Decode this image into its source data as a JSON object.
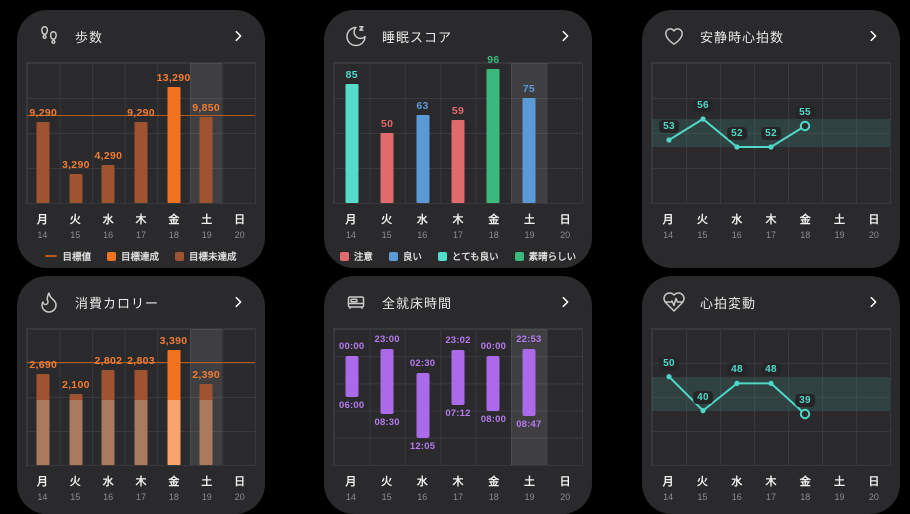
{
  "colors": {
    "page_bg": "#000000",
    "card_bg": "#2a2a2c",
    "grid_line": "#39393c",
    "highlight_col": "rgba(255,255,255,0.10)",
    "title_text": "#e8e8e8",
    "day_text": "#f0f0f0",
    "date_text": "#8d8d90",
    "icon_stroke": "#c9c9c9",
    "chevron": "#ffffff",
    "legend_text": "#dcdcdc",
    "orange": "#f1731f",
    "orange_light": "#f9a46c",
    "brown": "#9e5430",
    "brown_light": "#aa7a5e",
    "goal_line": "#b45b1e",
    "bar_label": "#f07c33",
    "red": "#e16a6c",
    "blue": "#5b9ad7",
    "teal": "#52dcc9",
    "green": "#3ab97e",
    "line_teal": "#4fd8c7",
    "band_fill": "rgba(79,216,199,0.14)",
    "badge_bg": "#252528",
    "purple": "#ab6ae9",
    "purple_label": "#b57bee"
  },
  "axis": {
    "days": [
      "月",
      "火",
      "水",
      "木",
      "金",
      "土",
      "日"
    ],
    "dates": [
      "14",
      "15",
      "16",
      "17",
      "18",
      "19",
      "20"
    ]
  },
  "cards": [
    {
      "id": "steps",
      "title": "歩数",
      "icon": "footprints-icon",
      "chart_data": {
        "type": "bar",
        "categories": [
          "月14",
          "火15",
          "水16",
          "木17",
          "金18",
          "土19",
          "日20"
        ],
        "values": [
          9290,
          3290,
          4290,
          9290,
          13290,
          9850,
          null
        ],
        "value_labels": [
          "9,290",
          "3,290",
          "4,290",
          "9,290",
          "13,290",
          "9,850",
          ""
        ],
        "bar_colors": [
          "brown",
          "brown",
          "brown",
          "brown",
          "orange",
          "brown",
          null
        ],
        "label_color": "bar_label",
        "goal": 10000,
        "ylim": [
          0,
          16000
        ],
        "highlight_index": 5,
        "legend": [
          {
            "swatch": "line",
            "label": "目標値",
            "color_key": "goal_line"
          },
          {
            "swatch": "square",
            "label": "目標達成",
            "color_key": "orange"
          },
          {
            "swatch": "square",
            "label": "目標未達成",
            "color_key": "brown"
          }
        ]
      }
    },
    {
      "id": "sleep-score",
      "title": "睡眠スコア",
      "icon": "moon-z-icon",
      "chart_data": {
        "type": "bar",
        "categories": [
          "月14",
          "火15",
          "水16",
          "木17",
          "金18",
          "土19",
          "日20"
        ],
        "values": [
          85,
          50,
          63,
          59,
          96,
          75,
          null
        ],
        "value_labels": [
          "85",
          "50",
          "63",
          "59",
          "96",
          "75",
          ""
        ],
        "bar_colors": [
          "teal",
          "red",
          "blue",
          "red",
          "green",
          "blue",
          null
        ],
        "label_color": "per-bar",
        "ylim": [
          0,
          100
        ],
        "highlight_index": 5,
        "legend": [
          {
            "swatch": "square",
            "label": "注意",
            "color_key": "red"
          },
          {
            "swatch": "square",
            "label": "良い",
            "color_key": "blue"
          },
          {
            "swatch": "square",
            "label": "とても良い",
            "color_key": "teal"
          },
          {
            "swatch": "square",
            "label": "素晴らしい",
            "color_key": "green"
          }
        ]
      }
    },
    {
      "id": "resting-hr",
      "title": "安静時心拍数",
      "icon": "heart-icon",
      "chart_data": {
        "type": "line",
        "categories": [
          "月14",
          "火15",
          "水16",
          "木17",
          "金18",
          "土19",
          "日20"
        ],
        "values": [
          53,
          56,
          52,
          52,
          55,
          null,
          null
        ],
        "ylim": [
          44,
          64
        ],
        "band": [
          52,
          56
        ]
      }
    },
    {
      "id": "calories",
      "title": "消費カロリー",
      "icon": "flame-icon",
      "chart_data": {
        "type": "bar",
        "categories": [
          "月14",
          "火15",
          "水16",
          "木17",
          "金18",
          "土19",
          "日20"
        ],
        "values": [
          2690,
          2100,
          2802,
          2803,
          3390,
          2390,
          null
        ],
        "value_labels": [
          "2,690",
          "2,100",
          "2,802",
          "2,803",
          "3,390",
          "2,390",
          ""
        ],
        "bar_colors": [
          "brown",
          "brown",
          "brown",
          "brown",
          "orange",
          "brown",
          null
        ],
        "low_colors": {
          "brown": "brown_light",
          "orange": "orange_light"
        },
        "label_color": "bar_label",
        "goal": 3000,
        "split": 1900,
        "ylim": [
          0,
          4000
        ],
        "highlight_index": 5
      }
    },
    {
      "id": "time-in-bed",
      "title": "全就床時間",
      "icon": "bed-icon",
      "chart_data": {
        "type": "range",
        "categories": [
          "月14",
          "火15",
          "水16",
          "木17",
          "金18",
          "土19",
          "日20"
        ],
        "ranges": [
          [
            "00:00",
            "06:00"
          ],
          [
            "23:00",
            "08:30"
          ],
          [
            "02:30",
            "12:05"
          ],
          [
            "23:02",
            "07:12"
          ],
          [
            "00:00",
            "08:00"
          ],
          [
            "22:53",
            "08:47"
          ],
          null
        ],
        "time_top": "20:00",
        "time_bottom": "16:00",
        "highlight_index": 5
      }
    },
    {
      "id": "hrv",
      "title": "心拍変動",
      "icon": "heart-pulse-icon",
      "chart_data": {
        "type": "line",
        "categories": [
          "月14",
          "火15",
          "水16",
          "木17",
          "金18",
          "土19",
          "日20"
        ],
        "values": [
          50,
          40,
          48,
          48,
          39,
          null,
          null
        ],
        "ylim": [
          24,
          64
        ],
        "band": [
          40,
          50
        ]
      }
    }
  ]
}
